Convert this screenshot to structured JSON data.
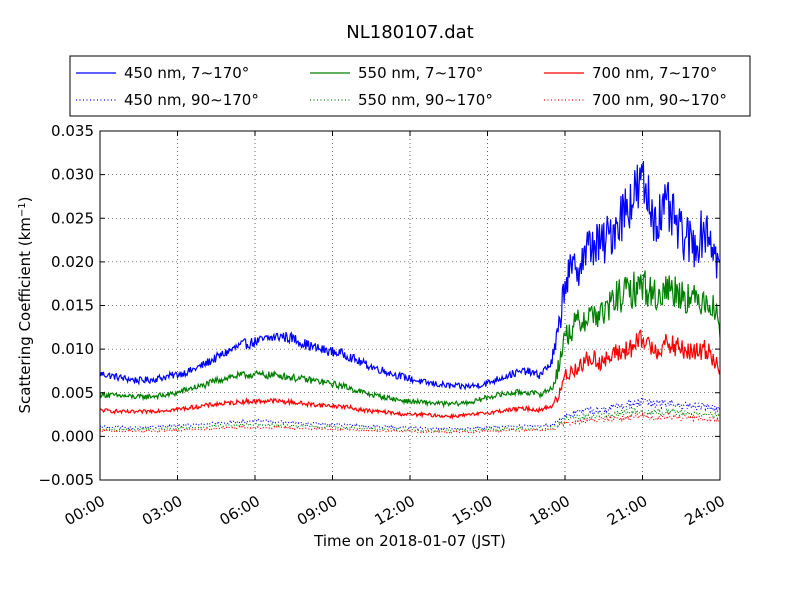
{
  "chart_data": {
    "type": "line",
    "title": "NL180107.dat",
    "xlabel": "Time on 2018-01-07 (JST)",
    "ylabel": "Scattering Coefficient (km",
    "ylabel_sup": "−1",
    "ylabel_end": ")",
    "xlim": [
      0,
      24
    ],
    "ylim": [
      -0.005,
      0.035
    ],
    "grid": true,
    "legend_position": "top",
    "x_ticks": [
      {
        "value": 0,
        "label": "00:00"
      },
      {
        "value": 3,
        "label": "03:00"
      },
      {
        "value": 6,
        "label": "06:00"
      },
      {
        "value": 9,
        "label": "09:00"
      },
      {
        "value": 12,
        "label": "12:00"
      },
      {
        "value": 15,
        "label": "15:00"
      },
      {
        "value": 18,
        "label": "18:00"
      },
      {
        "value": 21,
        "label": "21:00"
      },
      {
        "value": 24,
        "label": "24:00"
      }
    ],
    "y_ticks": [
      {
        "value": -0.005,
        "label": "−0.005"
      },
      {
        "value": 0.0,
        "label": "0.000"
      },
      {
        "value": 0.005,
        "label": "0.005"
      },
      {
        "value": 0.01,
        "label": "0.010"
      },
      {
        "value": 0.015,
        "label": "0.015"
      },
      {
        "value": 0.02,
        "label": "0.020"
      },
      {
        "value": 0.025,
        "label": "0.025"
      },
      {
        "value": 0.03,
        "label": "0.030"
      },
      {
        "value": 0.035,
        "label": "0.035"
      }
    ],
    "x": [
      0,
      0.5,
      1,
      1.5,
      2,
      2.5,
      3,
      3.5,
      4,
      4.5,
      5,
      5.5,
      6,
      6.5,
      7,
      7.5,
      8,
      8.5,
      9,
      9.5,
      10,
      10.5,
      11,
      11.5,
      12,
      12.5,
      13,
      13.5,
      14,
      14.5,
      15,
      15.5,
      16,
      16.5,
      17,
      17.5,
      17.75,
      18,
      18.5,
      19,
      19.5,
      20,
      20.5,
      21,
      21.5,
      22,
      22.5,
      23,
      23.5,
      24
    ],
    "series": [
      {
        "name": "450 nm, 7∼170°",
        "color": "#0000ff",
        "style": "solid",
        "values": [
          0.0072,
          0.0069,
          0.0066,
          0.0064,
          0.0065,
          0.0068,
          0.0071,
          0.0075,
          0.0082,
          0.009,
          0.0098,
          0.0105,
          0.0108,
          0.0112,
          0.0115,
          0.0112,
          0.0105,
          0.01,
          0.0097,
          0.0094,
          0.0086,
          0.008,
          0.0075,
          0.007,
          0.0066,
          0.0062,
          0.006,
          0.0058,
          0.0057,
          0.0058,
          0.0061,
          0.0067,
          0.0072,
          0.0075,
          0.007,
          0.0085,
          0.012,
          0.018,
          0.0195,
          0.022,
          0.022,
          0.0245,
          0.027,
          0.029,
          0.025,
          0.026,
          0.023,
          0.022,
          0.024,
          0.019
        ]
      },
      {
        "name": "550 nm, 7∼170°",
        "color": "#008000",
        "style": "solid",
        "values": [
          0.0048,
          0.0047,
          0.0046,
          0.0045,
          0.0046,
          0.0047,
          0.005,
          0.0055,
          0.0058,
          0.0064,
          0.0068,
          0.007,
          0.0071,
          0.007,
          0.007,
          0.0067,
          0.0065,
          0.0063,
          0.006,
          0.0057,
          0.0052,
          0.0048,
          0.0045,
          0.0042,
          0.004,
          0.0039,
          0.0038,
          0.0037,
          0.0038,
          0.004,
          0.0045,
          0.0048,
          0.005,
          0.0051,
          0.0048,
          0.0055,
          0.008,
          0.0115,
          0.013,
          0.014,
          0.014,
          0.016,
          0.0165,
          0.0175,
          0.016,
          0.017,
          0.0165,
          0.0155,
          0.016,
          0.013
        ]
      },
      {
        "name": "700 nm, 7∼170°",
        "color": "#ff0000",
        "style": "solid",
        "values": [
          0.003,
          0.0029,
          0.0028,
          0.0028,
          0.0029,
          0.003,
          0.0031,
          0.0033,
          0.0035,
          0.0037,
          0.0038,
          0.004,
          0.004,
          0.0041,
          0.004,
          0.0039,
          0.0037,
          0.0036,
          0.0035,
          0.0034,
          0.0031,
          0.0029,
          0.0028,
          0.0026,
          0.0025,
          0.0025,
          0.0024,
          0.0023,
          0.0024,
          0.0025,
          0.0027,
          0.0029,
          0.0031,
          0.0032,
          0.003,
          0.0035,
          0.0045,
          0.007,
          0.008,
          0.009,
          0.0085,
          0.0095,
          0.01,
          0.011,
          0.01,
          0.0105,
          0.01,
          0.0095,
          0.01,
          0.008
        ]
      },
      {
        "name": "450 nm, 90∼170°",
        "color": "#0000ff",
        "style": "dotted",
        "values": [
          0.0011,
          0.0011,
          0.001,
          0.001,
          0.0011,
          0.0011,
          0.0012,
          0.0013,
          0.0014,
          0.0015,
          0.0016,
          0.0017,
          0.0018,
          0.0017,
          0.0017,
          0.0016,
          0.0015,
          0.0014,
          0.0014,
          0.0013,
          0.0012,
          0.0011,
          0.0011,
          0.001,
          0.001,
          0.0009,
          0.0009,
          0.0009,
          0.0009,
          0.0009,
          0.001,
          0.0011,
          0.0012,
          0.0012,
          0.0012,
          0.0013,
          0.0018,
          0.0024,
          0.0027,
          0.003,
          0.0031,
          0.0034,
          0.0037,
          0.004,
          0.0036,
          0.0038,
          0.0035,
          0.0033,
          0.0035,
          0.0029
        ]
      },
      {
        "name": "550 nm, 90∼170°",
        "color": "#008000",
        "style": "dotted",
        "values": [
          0.0008,
          0.0008,
          0.0008,
          0.0008,
          0.0008,
          0.0009,
          0.0009,
          0.001,
          0.0011,
          0.0012,
          0.0013,
          0.0013,
          0.0014,
          0.0013,
          0.0013,
          0.0012,
          0.0012,
          0.0011,
          0.0011,
          0.001,
          0.0009,
          0.0009,
          0.0008,
          0.0008,
          0.0007,
          0.0007,
          0.0007,
          0.0007,
          0.0007,
          0.0007,
          0.0008,
          0.0008,
          0.0009,
          0.0009,
          0.0009,
          0.001,
          0.0014,
          0.0019,
          0.0021,
          0.0023,
          0.0024,
          0.0026,
          0.0028,
          0.003,
          0.0027,
          0.0029,
          0.0027,
          0.0025,
          0.0027,
          0.0022
        ]
      },
      {
        "name": "700 nm, 90∼170°",
        "color": "#ff0000",
        "style": "dotted",
        "values": [
          0.0006,
          0.0006,
          0.0006,
          0.0006,
          0.0006,
          0.0007,
          0.0007,
          0.0008,
          0.0008,
          0.0009,
          0.001,
          0.001,
          0.001,
          0.001,
          0.001,
          0.0009,
          0.0009,
          0.0009,
          0.0008,
          0.0008,
          0.0007,
          0.0007,
          0.0006,
          0.0006,
          0.0006,
          0.0005,
          0.0005,
          0.0005,
          0.0005,
          0.0005,
          0.0006,
          0.0006,
          0.0007,
          0.0007,
          0.0007,
          0.0008,
          0.0011,
          0.0015,
          0.0017,
          0.0018,
          0.0019,
          0.002,
          0.0022,
          0.0024,
          0.0021,
          0.0023,
          0.0021,
          0.002,
          0.0021,
          0.0017
        ]
      }
    ]
  }
}
